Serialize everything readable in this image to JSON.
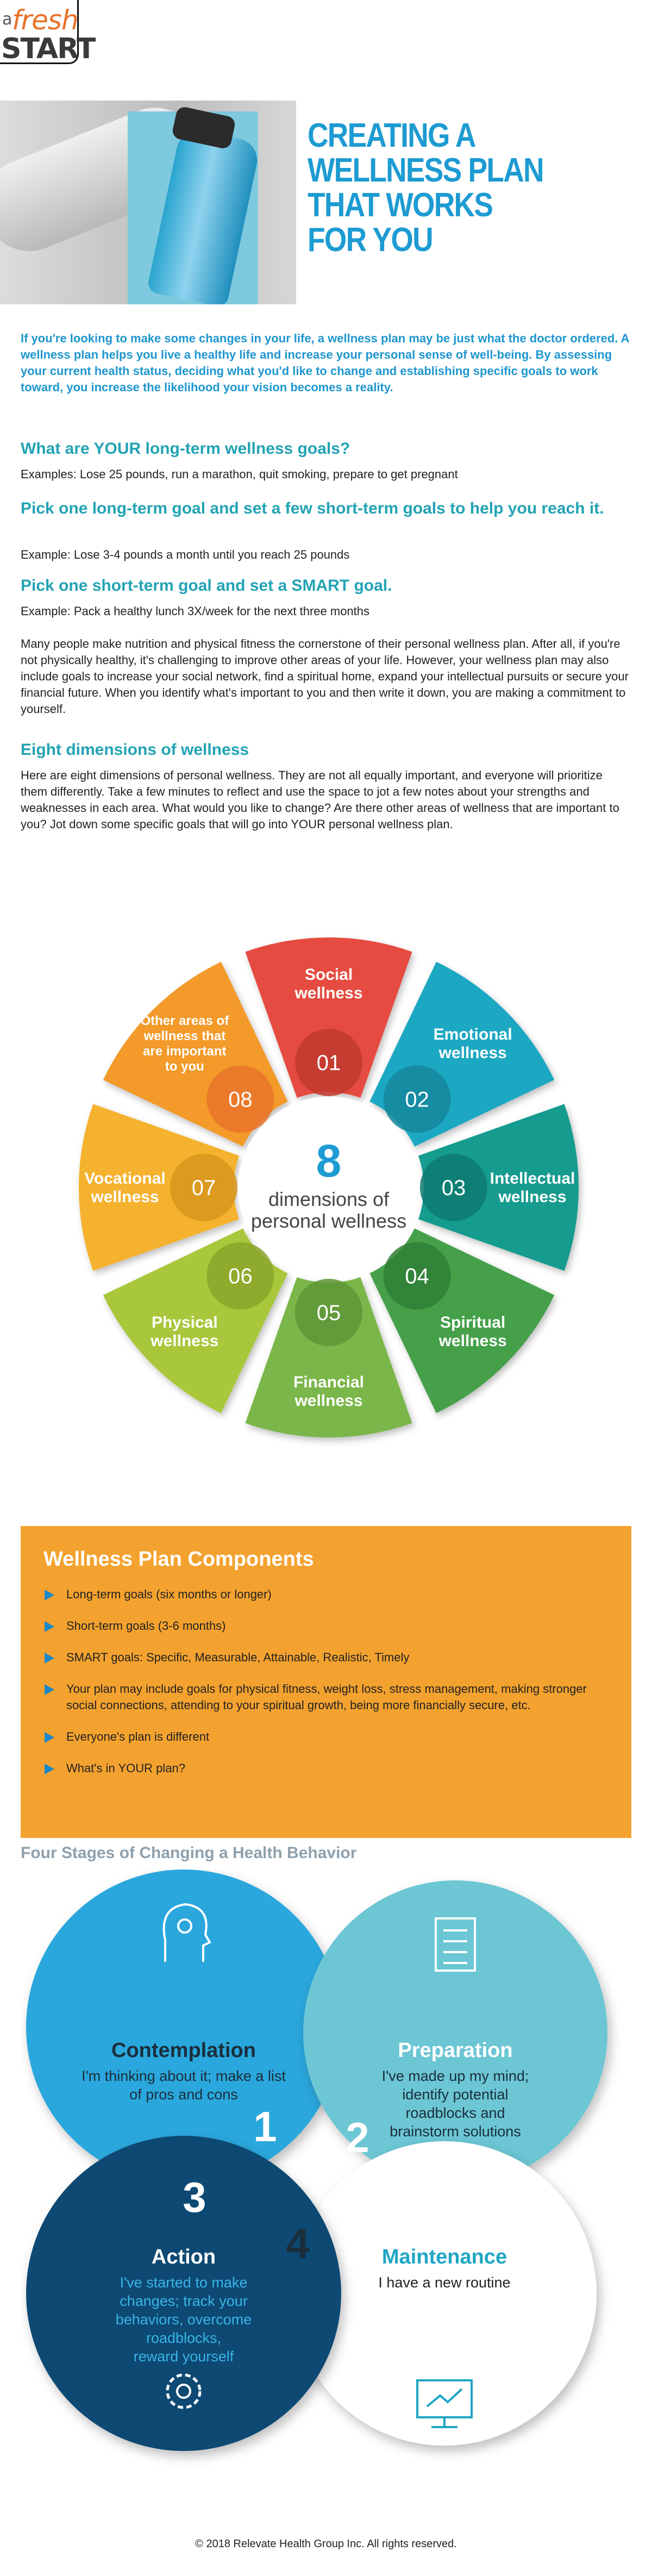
{
  "logo": {
    "a": "a",
    "fresh": "fresh",
    "start": "START"
  },
  "hero": {
    "title_lines": [
      "CREATING A",
      "WELLNESS PLAN",
      "THAT WORKS",
      "FOR YOU"
    ]
  },
  "intro": "If you're looking to make some changes in your life, a wellness plan may be just what the doctor ordered. A wellness plan helps you live a healthy life and increase your personal sense of well-being. By assessing your current health status, deciding what you'd like to change and establishing specific goals to work toward, you increase the likelihood your vision becomes a reality.",
  "sections": {
    "long_term": {
      "heading": "What are YOUR long-term wellness goals?",
      "text": "Examples: Lose 25 pounds, run a marathon, quit smoking, prepare to get pregnant"
    },
    "short_term": {
      "heading": "Pick one long-term goal and set a few short-term goals to help you reach it.",
      "text": "Example: Lose 3-4 pounds a month until you reach 25 pounds"
    },
    "smart": {
      "heading": "Pick one short-term goal and set a SMART goal.",
      "text": "Example: Pack a healthy lunch 3X/week for the next three months"
    },
    "cornerstone": "Many people make nutrition and physical fitness the cornerstone of their personal wellness plan. After all, if you're not physically healthy, it's challenging to improve other areas of your life. However, your wellness plan may also include goals to increase your social network, find a spiritual home, expand your intellectual pursuits or secure your financial future. When you identify what's important to you and then write it down, you are making a commitment to yourself.",
    "eight": {
      "heading": "Eight dimensions of wellness",
      "text": "Here are eight dimensions of personal wellness. They are not all equally important, and everyone will prioritize them differently. Take a few minutes to reflect and use the space to jot a few notes about your strengths and weaknesses in each area. What would you like to change? Are there other areas of wellness that are important to you? Jot down some specific goals that will go into YOUR personal wellness plan."
    }
  },
  "wheel": {
    "center_number": "8",
    "center_line1": "dimensions of",
    "center_line2": "personal wellness",
    "segments": [
      {
        "num": "01",
        "line1": "Social",
        "line2": "wellness",
        "color": "#e54b3f",
        "dark": "#c23a2f",
        "icon": "people-icon"
      },
      {
        "num": "02",
        "line1": "Emotional",
        "line2": "wellness",
        "color": "#1ba8c2",
        "dark": "#14879c",
        "icon": "running-figure-icon"
      },
      {
        "num": "03",
        "line1": "Intellectual",
        "line2": "wellness",
        "color": "#139b8f",
        "dark": "#0d7a70",
        "icon": "person-icon"
      },
      {
        "num": "04",
        "line1": "Spiritual",
        "line2": "wellness",
        "color": "#44a04a",
        "dark": "#2f7f35",
        "icon": "meditation-icon"
      },
      {
        "num": "05",
        "line1": "Financial",
        "line2": "wellness",
        "color": "#7ab648",
        "dark": "#5e9636",
        "icon": "house-check-icon"
      },
      {
        "num": "06",
        "line1": "Physical",
        "line2": "wellness",
        "color": "#a8c73a",
        "dark": "#8aa62b",
        "icon": "exercise-figures-icon"
      },
      {
        "num": "07",
        "line1": "Vocational",
        "line2": "wellness",
        "color": "#f4b22e",
        "dark": "#d7951b",
        "icon": "raised-hand-icon"
      },
      {
        "num": "08",
        "line1": "Other areas of",
        "line2": "wellness that",
        "line3": "are important",
        "line4": "to you",
        "color": "#f39a2c",
        "dark": "#e8742a",
        "icon": "two-people-icon"
      }
    ]
  },
  "components": {
    "heading": "Wellness Plan Components",
    "items": [
      "Long-term goals (six months or longer)",
      "Short-term goals (3-6 months)",
      "SMART goals: Specific, Measurable, Attainable, Realistic, Timely",
      "Your plan may include goals for physical fitness, weight loss, stress management, making stronger social connections, attending to your spiritual growth, being more financially secure, etc.",
      "Everyone's plan is different",
      "What's in YOUR plan?"
    ]
  },
  "stages": {
    "heading": "Four Stages of Changing a Health Behavior",
    "items": [
      {
        "num": "1",
        "title": "Contemplation",
        "lines": [
          "I'm thinking about it; make a list",
          "of pros and cons"
        ],
        "icon": "head-lightbulb-icon"
      },
      {
        "num": "2",
        "title": "Preparation",
        "lines": [
          "I've made up my mind;",
          "identify potential",
          "roadblocks and",
          "brainstorm solutions"
        ],
        "icon": "document-icon"
      },
      {
        "num": "3",
        "title": "Action",
        "lines": [
          "I've started to make",
          "changes; track your",
          "behaviors, overcome",
          "roadblocks,",
          "reward yourself"
        ],
        "icon": "gear-icon"
      },
      {
        "num": "4",
        "title": "Maintenance",
        "lines": [
          "I have a new routine"
        ],
        "icon": "monitor-chart-icon"
      }
    ]
  },
  "footer": "© 2018 Relevate Health Group Inc. All rights reserved."
}
